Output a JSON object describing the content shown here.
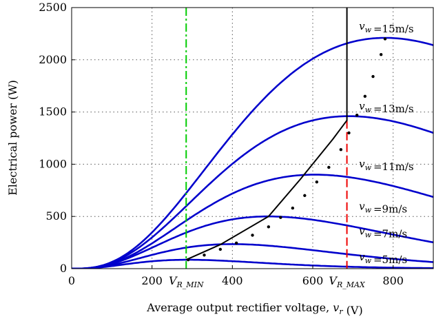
{
  "chart_data": {
    "type": "line",
    "xlabel": "Average output rectifier voltage, v_r (V)",
    "ylabel": "Electrical power (W)",
    "xlim": [
      0,
      900
    ],
    "ylim": [
      0,
      2500
    ],
    "x_ticks": [
      0,
      200,
      400,
      600,
      800
    ],
    "y_ticks": [
      0,
      500,
      1000,
      1500,
      2000,
      2500
    ],
    "grid": true,
    "x_tick_annotations": [
      {
        "text": "V_R_MIN",
        "x": 285
      },
      {
        "text": "V_R_MAX",
        "x": 685
      }
    ],
    "power_curves": [
      {
        "wind_speed": 5,
        "peak_x": 290,
        "peak_y": 85
      },
      {
        "wind_speed": 7,
        "peak_x": 400,
        "peak_y": 235
      },
      {
        "wind_speed": 9,
        "peak_x": 490,
        "peak_y": 500
      },
      {
        "wind_speed": 11,
        "peak_x": 605,
        "peak_y": 900
      },
      {
        "wind_speed": 13,
        "peak_x": 690,
        "peak_y": 1460
      },
      {
        "wind_speed": 15,
        "peak_x": 780,
        "peak_y": 2210
      }
    ],
    "curve_labels": [
      {
        "text": "=5m/s",
        "x": 715,
        "y": 80
      },
      {
        "text": "=7m/s",
        "x": 715,
        "y": 325
      },
      {
        "text": "=9m/s",
        "x": 715,
        "y": 565
      },
      {
        "text": "=11m/s",
        "x": 715,
        "y": 970
      },
      {
        "text": "=13m/s",
        "x": 715,
        "y": 1525
      },
      {
        "text": "=15m/s",
        "x": 715,
        "y": 2290
      }
    ],
    "curve_label_symbol": "v_w",
    "mppt_dotted": {
      "x": [
        290,
        330,
        370,
        410,
        450,
        490,
        520,
        550,
        580,
        610,
        640,
        670,
        690,
        710,
        730,
        750,
        770,
        780
      ],
      "y": [
        85,
        130,
        185,
        245,
        320,
        400,
        490,
        580,
        700,
        830,
        970,
        1140,
        1300,
        1470,
        1650,
        1840,
        2050,
        2200
      ]
    },
    "control_line": {
      "x": [
        285,
        370,
        490,
        570,
        650,
        685,
        685
      ],
      "y": [
        85,
        230,
        500,
        860,
        1240,
        1420,
        2500
      ]
    },
    "vr_min_line": {
      "x": 285,
      "color": "#00cc00"
    },
    "vr_max_line": {
      "x": 685,
      "y_top": 1420,
      "color": "#ee0000"
    },
    "colors": {
      "curves": "#0000cc",
      "control": "#000000",
      "mppt": "#000000"
    }
  }
}
